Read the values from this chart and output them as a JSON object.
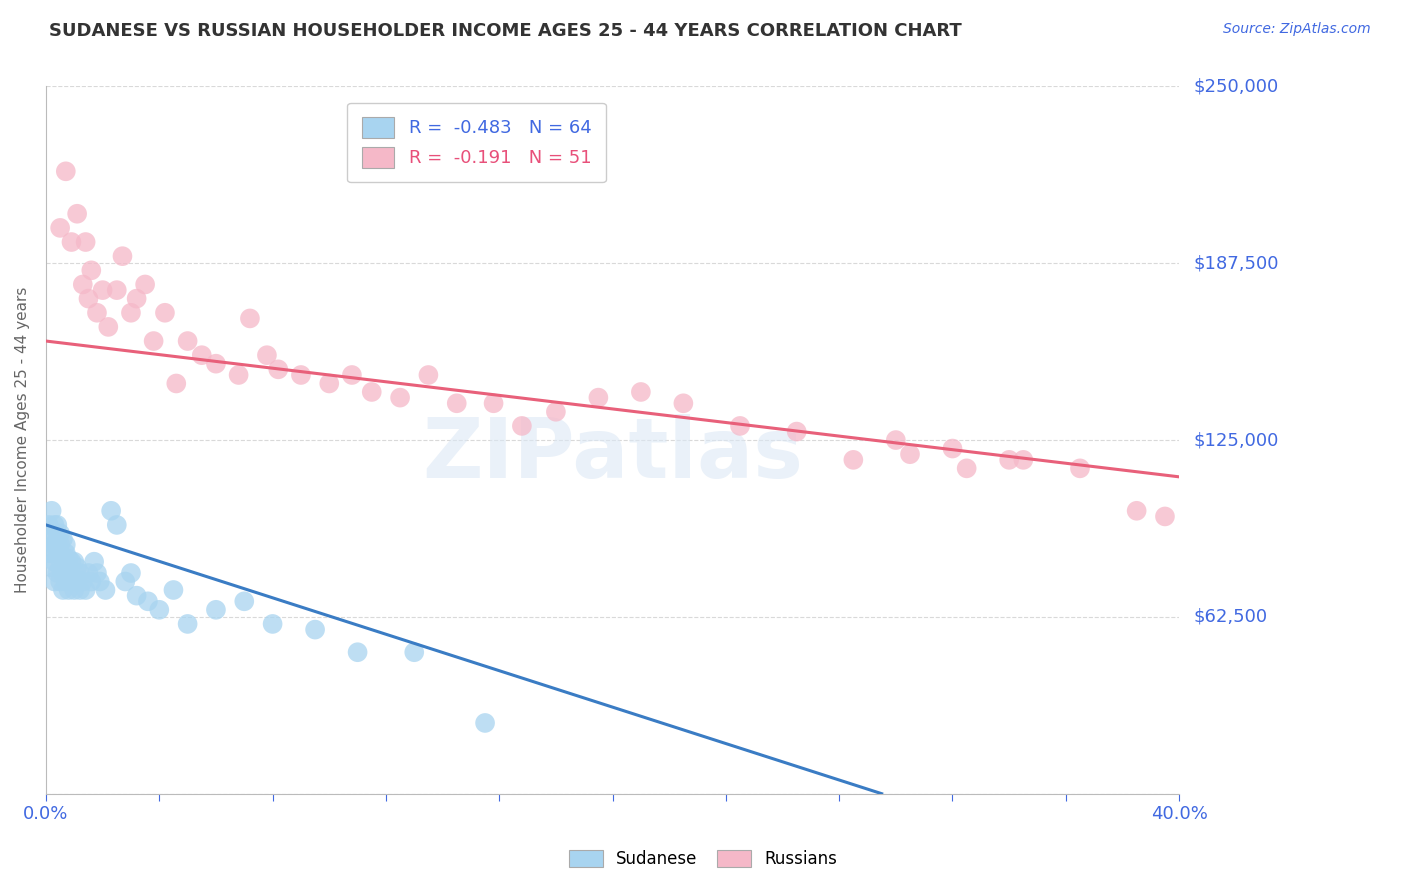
{
  "title": "SUDANESE VS RUSSIAN HOUSEHOLDER INCOME AGES 25 - 44 YEARS CORRELATION CHART",
  "source_text": "Source: ZipAtlas.com",
  "ylabel": "Householder Income Ages 25 - 44 years",
  "xlim": [
    0.0,
    0.4
  ],
  "ylim": [
    0,
    250000
  ],
  "yticks": [
    0,
    62500,
    125000,
    187500,
    250000
  ],
  "ytick_labels": [
    "",
    "$62,500",
    "$125,000",
    "$187,500",
    "$250,000"
  ],
  "background_color": "#ffffff",
  "grid_color": "#d0d0d0",
  "sudanese_color": "#a8d4f0",
  "russian_color": "#f5b8c8",
  "sudanese_line_color": "#3a7cc4",
  "russian_line_color": "#e8607a",
  "sudanese_x": [
    0.001,
    0.001,
    0.001,
    0.002,
    0.002,
    0.002,
    0.002,
    0.003,
    0.003,
    0.003,
    0.003,
    0.004,
    0.004,
    0.004,
    0.004,
    0.005,
    0.005,
    0.005,
    0.005,
    0.005,
    0.006,
    0.006,
    0.006,
    0.006,
    0.007,
    0.007,
    0.007,
    0.007,
    0.008,
    0.008,
    0.008,
    0.009,
    0.009,
    0.01,
    0.01,
    0.01,
    0.011,
    0.011,
    0.012,
    0.012,
    0.013,
    0.014,
    0.015,
    0.016,
    0.017,
    0.018,
    0.019,
    0.021,
    0.023,
    0.025,
    0.028,
    0.03,
    0.032,
    0.036,
    0.04,
    0.045,
    0.05,
    0.06,
    0.07,
    0.08,
    0.095,
    0.11,
    0.13,
    0.155
  ],
  "sudanese_y": [
    85000,
    90000,
    95000,
    80000,
    85000,
    90000,
    100000,
    75000,
    82000,
    88000,
    95000,
    78000,
    85000,
    90000,
    95000,
    75000,
    80000,
    85000,
    88000,
    92000,
    72000,
    78000,
    84000,
    90000,
    75000,
    80000,
    85000,
    88000,
    72000,
    78000,
    83000,
    75000,
    82000,
    72000,
    76000,
    82000,
    75000,
    80000,
    72000,
    78000,
    75000,
    72000,
    78000,
    75000,
    82000,
    78000,
    75000,
    72000,
    100000,
    95000,
    75000,
    78000,
    70000,
    68000,
    65000,
    72000,
    60000,
    65000,
    68000,
    60000,
    58000,
    50000,
    50000,
    25000
  ],
  "russian_x": [
    0.005,
    0.007,
    0.009,
    0.011,
    0.013,
    0.014,
    0.015,
    0.016,
    0.018,
    0.02,
    0.022,
    0.025,
    0.027,
    0.03,
    0.032,
    0.035,
    0.038,
    0.042,
    0.046,
    0.05,
    0.055,
    0.06,
    0.068,
    0.072,
    0.078,
    0.082,
    0.09,
    0.1,
    0.108,
    0.115,
    0.125,
    0.135,
    0.145,
    0.158,
    0.168,
    0.18,
    0.195,
    0.21,
    0.225,
    0.245,
    0.265,
    0.285,
    0.305,
    0.325,
    0.345,
    0.365,
    0.385,
    0.3,
    0.32,
    0.34,
    0.395
  ],
  "russian_y": [
    200000,
    220000,
    195000,
    205000,
    180000,
    195000,
    175000,
    185000,
    170000,
    178000,
    165000,
    178000,
    190000,
    170000,
    175000,
    180000,
    160000,
    170000,
    145000,
    160000,
    155000,
    152000,
    148000,
    168000,
    155000,
    150000,
    148000,
    145000,
    148000,
    142000,
    140000,
    148000,
    138000,
    138000,
    130000,
    135000,
    140000,
    142000,
    138000,
    130000,
    128000,
    118000,
    120000,
    115000,
    118000,
    115000,
    100000,
    125000,
    122000,
    118000,
    98000
  ],
  "sudanese_trend_x": [
    0.0,
    0.295
  ],
  "sudanese_trend_y": [
    95000,
    0
  ],
  "russian_trend_x": [
    0.0,
    0.4
  ],
  "russian_trend_y": [
    160000,
    112000
  ]
}
